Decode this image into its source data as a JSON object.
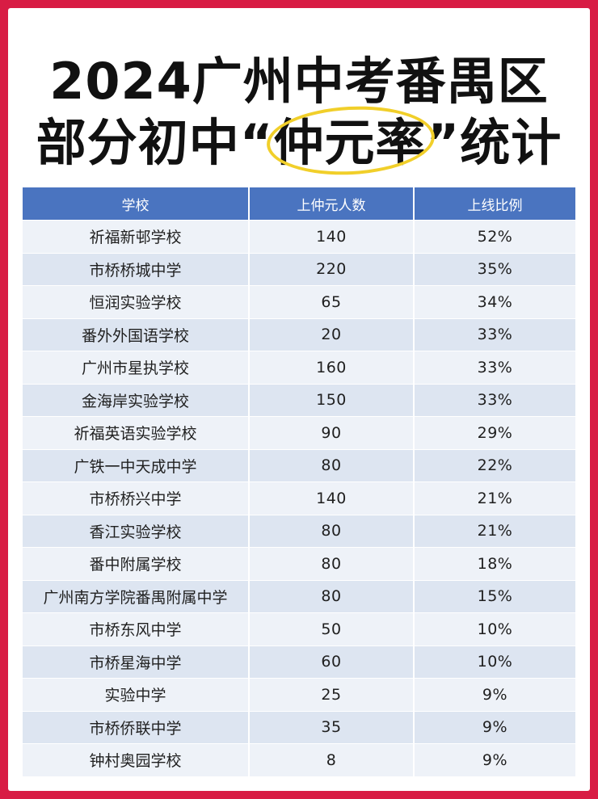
{
  "title": {
    "line1": "2024广州中考番禺区",
    "line2_prefix": "部分初中“",
    "line2_highlight": "仲元率",
    "line2_suffix": "”统计"
  },
  "table": {
    "headers": [
      "学校",
      "上仲元人数",
      "上线比例"
    ],
    "rows": [
      [
        "祈福新邨学校",
        "140",
        "52%"
      ],
      [
        "市桥桥城中学",
        "220",
        "35%"
      ],
      [
        "恒润实验学校",
        "65",
        "34%"
      ],
      [
        "番外外国语学校",
        "20",
        "33%"
      ],
      [
        "广州市星执学校",
        "160",
        "33%"
      ],
      [
        "金海岸实验学校",
        "150",
        "33%"
      ],
      [
        "祈福英语实验学校",
        "90",
        "29%"
      ],
      [
        "广铁一中天成中学",
        "80",
        "22%"
      ],
      [
        "市桥桥兴中学",
        "140",
        "21%"
      ],
      [
        "香江实验学校",
        "80",
        "21%"
      ],
      [
        "番中附属学校",
        "80",
        "18%"
      ],
      [
        "广州南方学院番禺附属中学",
        "80",
        "15%"
      ],
      [
        "市桥东风中学",
        "50",
        "10%"
      ],
      [
        "市桥星海中学",
        "60",
        "10%"
      ],
      [
        "实验中学",
        "25",
        "9%"
      ],
      [
        "市桥侨联中学",
        "35",
        "9%"
      ],
      [
        "钟村奥园学校",
        "8",
        "9%"
      ]
    ]
  },
  "colors": {
    "border": "#d81c44",
    "header_bg": "#4a74c0",
    "row_light": "#eef2f8",
    "row_dark": "#dde5f1",
    "highlight_ring": "#f1cf2a"
  }
}
